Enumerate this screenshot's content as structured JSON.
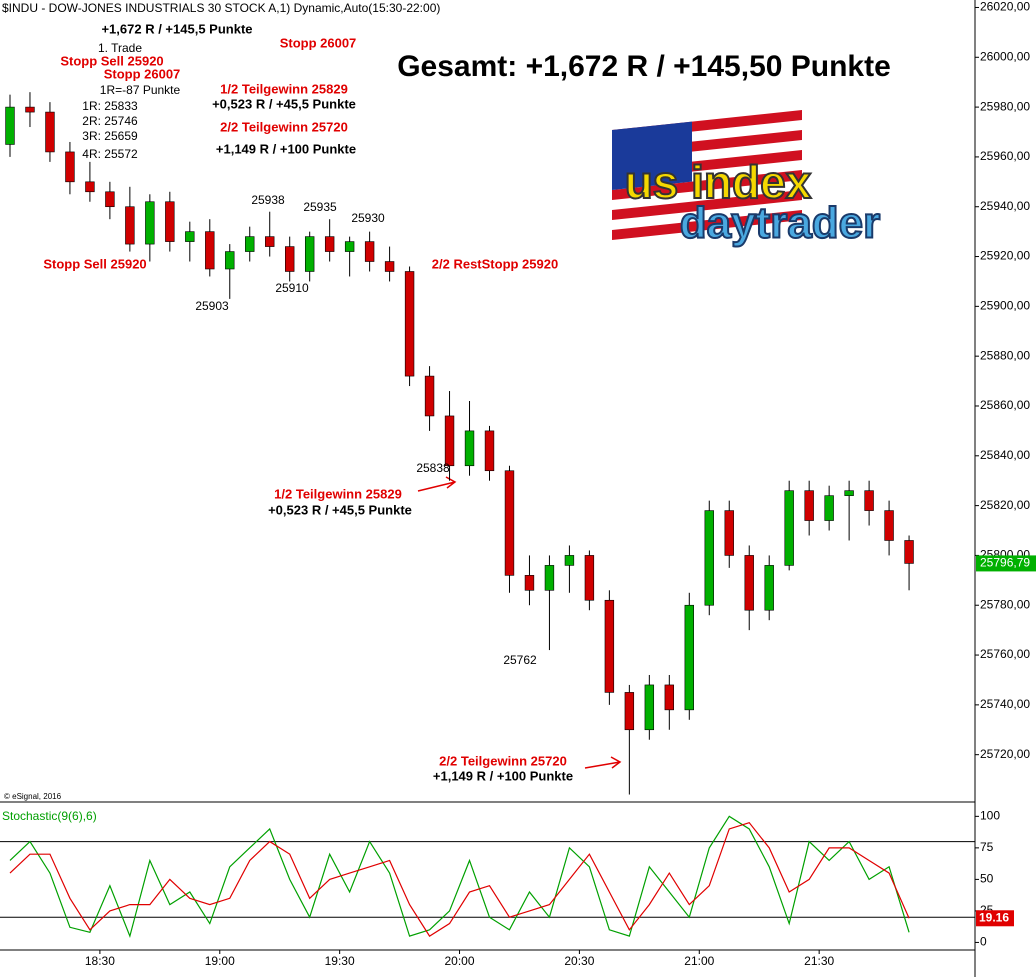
{
  "chart_data": [
    {
      "type": "candlestick",
      "title": "$INDU - DOW-JONES INDUSTRIALS 30 STOCK A,1) Dynamic,Auto(15:30-22:00)",
      "copyright": "© eSignal, 2016",
      "x": [
        "18:05",
        "18:10",
        "18:15",
        "18:20",
        "18:25",
        "18:30",
        "18:35",
        "18:40",
        "18:45",
        "18:50",
        "18:55",
        "19:00",
        "19:05",
        "19:10",
        "19:15",
        "19:20",
        "19:25",
        "19:30",
        "19:35",
        "19:40",
        "19:45",
        "19:50",
        "19:55",
        "20:00",
        "20:05",
        "20:10",
        "20:15",
        "20:20",
        "20:25",
        "20:30",
        "20:35",
        "20:40",
        "20:45",
        "20:50",
        "20:55",
        "21:00",
        "21:05",
        "21:10",
        "21:15",
        "21:20",
        "21:25",
        "21:30",
        "21:35",
        "21:40",
        "21:45",
        "21:50"
      ],
      "open": [
        25965,
        25980,
        25978,
        25962,
        25950,
        25946,
        25940,
        25925,
        25942,
        25926,
        25930,
        25915,
        25922,
        25928,
        25924,
        25914,
        25928,
        25922,
        25926,
        25918,
        25914,
        25872,
        25856,
        25836,
        25850,
        25834,
        25792,
        25786,
        25796,
        25800,
        25782,
        25745,
        25730,
        25748,
        25738,
        25780,
        25818,
        25800,
        25778,
        25796,
        25826,
        25814,
        25824,
        25826,
        25818,
        25806
      ],
      "high": [
        25985,
        25986,
        25982,
        25966,
        25958,
        25950,
        25948,
        25945,
        25946,
        25934,
        25935,
        25925,
        25932,
        25938,
        25928,
        25930,
        25935,
        25928,
        25930,
        25924,
        25916,
        25876,
        25866,
        25862,
        25852,
        25836,
        25800,
        25800,
        25804,
        25802,
        25786,
        25748,
        25752,
        25752,
        25785,
        25822,
        25822,
        25804,
        25800,
        25830,
        25830,
        25828,
        25830,
        25830,
        25822,
        25808
      ],
      "low": [
        25960,
        25972,
        25958,
        25945,
        25942,
        25935,
        25922,
        25918,
        25922,
        25918,
        25912,
        25903,
        25918,
        25920,
        25910,
        25910,
        25918,
        25912,
        25914,
        25910,
        25868,
        25850,
        25830,
        25832,
        25830,
        25785,
        25780,
        25762,
        25785,
        25778,
        25740,
        25704,
        25726,
        25730,
        25734,
        25776,
        25795,
        25770,
        25774,
        25794,
        25808,
        25810,
        25806,
        25812,
        25800,
        25786
      ],
      "close": [
        25980,
        25978,
        25962,
        25950,
        25946,
        25940,
        25925,
        25942,
        25926,
        25930,
        25915,
        25922,
        25928,
        25924,
        25914,
        25928,
        25922,
        25926,
        25918,
        25914,
        25872,
        25856,
        25836,
        25850,
        25834,
        25792,
        25786,
        25796,
        25800,
        25782,
        25745,
        25730,
        25748,
        25738,
        25780,
        25818,
        25800,
        25778,
        25796,
        25826,
        25814,
        25824,
        25826,
        25818,
        25806,
        25796.79
      ],
      "up_color": "#00b000",
      "down_color": "#d00000",
      "xlim": [
        "18:05",
        "22:09"
      ],
      "ylim": [
        25701,
        26023
      ],
      "yticks": [
        {
          "value": 25720,
          "label": "25720,00"
        },
        {
          "value": 25740,
          "label": "25740,00"
        },
        {
          "value": 25760,
          "label": "25760,00"
        },
        {
          "value": 25780,
          "label": "25780,00"
        },
        {
          "value": 25800,
          "label": "25800,00"
        },
        {
          "value": 25820,
          "label": "25820,00"
        },
        {
          "value": 25840,
          "label": "25840,00"
        },
        {
          "value": 25860,
          "label": "25860,00"
        },
        {
          "value": 25880,
          "label": "25880,00"
        },
        {
          "value": 25900,
          "label": "25900,00"
        },
        {
          "value": 25920,
          "label": "25920,00"
        },
        {
          "value": 25940,
          "label": "25940,00"
        },
        {
          "value": 25960,
          "label": "25960,00"
        },
        {
          "value": 25980,
          "label": "25980,00"
        },
        {
          "value": 26000,
          "label": "26000,00"
        },
        {
          "value": 26020,
          "label": "26020,00"
        }
      ],
      "last_price": {
        "value": 25796.79,
        "label": "25796,79"
      },
      "annotations": [
        {
          "text": "+1,672 R / +145,5 Punkte",
          "color": "black"
        },
        {
          "text": "1. Trade",
          "color": "black"
        },
        {
          "text": "Stopp Sell 25920",
          "color": "red"
        },
        {
          "text": "Stopp 26007",
          "color": "red"
        },
        {
          "text": "1R=-87 Punkte",
          "color": "black"
        },
        {
          "text": "1R: 25833",
          "color": "black"
        },
        {
          "text": "2R: 25746",
          "color": "black"
        },
        {
          "text": "3R: 25659",
          "color": "black"
        },
        {
          "text": "4R: 25572",
          "color": "black"
        },
        {
          "text": "Stopp 26007",
          "color": "red"
        },
        {
          "text": "1/2 Teilgewinn 25829",
          "color": "red"
        },
        {
          "text": "+0,523 R / +45,5 Punkte",
          "color": "black"
        },
        {
          "text": "2/2 Teilgewinn 25720",
          "color": "red"
        },
        {
          "text": "+1,149 R / +100 Punkte",
          "color": "black"
        },
        {
          "text": "Gesamt: +1,672 R / +145,50 Punkte",
          "color": "black"
        },
        {
          "text": "Stopp Sell 25920",
          "color": "red"
        },
        {
          "text": "25903",
          "color": "black"
        },
        {
          "text": "25938",
          "color": "black"
        },
        {
          "text": "25935",
          "color": "black"
        },
        {
          "text": "25930",
          "color": "black"
        },
        {
          "text": "25910",
          "color": "black"
        },
        {
          "text": "2/2 RestStopp 25920",
          "color": "red"
        },
        {
          "text": "25838",
          "color": "black"
        },
        {
          "text": "1/2 Teilgewinn 25829",
          "color": "red"
        },
        {
          "text": "+0,523 R / +45,5 Punkte",
          "color": "black"
        },
        {
          "text": "25762",
          "color": "black"
        },
        {
          "text": "2/2 Teilgewinn 25720",
          "color": "red"
        },
        {
          "text": "+1,149 R / +100 Punkte",
          "color": "black"
        }
      ],
      "logo": [
        "us index",
        "daytrader"
      ]
    },
    {
      "type": "line",
      "title": "Stochastic(9(6),6)",
      "x": [
        "18:05",
        "18:10",
        "18:15",
        "18:20",
        "18:25",
        "18:30",
        "18:35",
        "18:40",
        "18:45",
        "18:50",
        "18:55",
        "19:00",
        "19:05",
        "19:10",
        "19:15",
        "19:20",
        "19:25",
        "19:30",
        "19:35",
        "19:40",
        "19:45",
        "19:50",
        "19:55",
        "20:00",
        "20:05",
        "20:10",
        "20:15",
        "20:20",
        "20:25",
        "20:30",
        "20:35",
        "20:40",
        "20:45",
        "20:50",
        "20:55",
        "21:00",
        "21:05",
        "21:10",
        "21:15",
        "21:20",
        "21:25",
        "21:30",
        "21:35",
        "21:40",
        "21:45",
        "21:50"
      ],
      "series": [
        {
          "name": "%K",
          "color": "#00a000",
          "values": [
            65,
            80,
            55,
            12,
            8,
            45,
            5,
            65,
            30,
            40,
            15,
            60,
            75,
            90,
            50,
            20,
            70,
            40,
            80,
            55,
            5,
            10,
            25,
            65,
            20,
            10,
            40,
            20,
            75,
            60,
            10,
            5,
            60,
            40,
            20,
            75,
            100,
            90,
            60,
            15,
            80,
            65,
            80,
            50,
            60,
            8
          ]
        },
        {
          "name": "%D",
          "color": "#e00000",
          "values": [
            55,
            70,
            70,
            35,
            10,
            25,
            30,
            30,
            50,
            35,
            30,
            35,
            65,
            80,
            70,
            35,
            50,
            55,
            60,
            65,
            30,
            5,
            15,
            40,
            45,
            20,
            25,
            30,
            50,
            70,
            40,
            10,
            30,
            55,
            30,
            45,
            90,
            95,
            75,
            40,
            50,
            75,
            75,
            65,
            55,
            19.16
          ]
        }
      ],
      "levels": [
        20,
        80
      ],
      "xlim": [
        "18:05",
        "22:09"
      ],
      "ylim": [
        -6,
        109
      ],
      "yticks": [
        0,
        25,
        50,
        75,
        100
      ],
      "xticks": [
        "18:30",
        "19:00",
        "19:30",
        "20:00",
        "20:30",
        "21:00",
        "21:30"
      ]
    }
  ]
}
